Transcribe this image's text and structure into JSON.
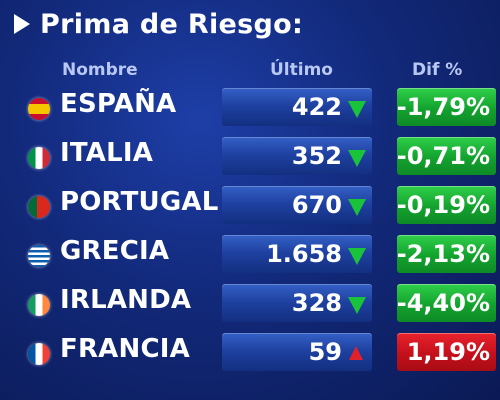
{
  "title": "Prima de Riesgo:",
  "headers": {
    "nombre": "Nombre",
    "ultimo": "Último",
    "dif": "Dif %"
  },
  "rows": [
    {
      "country": "ESPAÑA",
      "flag": "spain-flag-icon",
      "ultimo": "422",
      "trend": "down",
      "dif": "-1,79%"
    },
    {
      "country": "ITALIA",
      "flag": "italy-flag-icon",
      "ultimo": "352",
      "trend": "down",
      "dif": "-0,71%"
    },
    {
      "country": "PORTUGAL",
      "flag": "portugal-flag-icon",
      "ultimo": "670",
      "trend": "down",
      "dif": "-0,19%"
    },
    {
      "country": "GRECIA",
      "flag": "greece-flag-icon",
      "ultimo": "1.658",
      "trend": "down",
      "dif": "-2,13%"
    },
    {
      "country": "IRLANDA",
      "flag": "ireland-flag-icon",
      "ultimo": "328",
      "trend": "down",
      "dif": "-4,40%"
    },
    {
      "country": "FRANCIA",
      "flag": "france-flag-icon",
      "ultimo": "59",
      "trend": "up",
      "dif": "1,19%"
    }
  ],
  "colors": {
    "up": "#e0202a",
    "down": "#19c43b",
    "background": "#12297a"
  }
}
